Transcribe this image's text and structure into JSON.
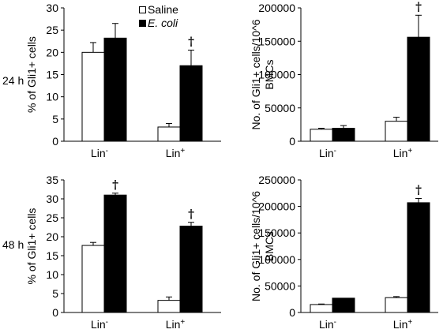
{
  "figure": {
    "row_labels": [
      "24 h",
      "48 h"
    ],
    "legend": [
      {
        "label": "Saline",
        "color": "#ffffff",
        "italic": false
      },
      {
        "label": "E. coli",
        "color": "#000000",
        "italic": true
      }
    ],
    "colors": {
      "saline": "#ffffff",
      "ecoli": "#000000",
      "axis": "#000000"
    }
  },
  "chart_data": [
    {
      "type": "bar",
      "panel": "24h-percent",
      "ylabel": "% of Gli1+ cells",
      "ylim": [
        0,
        30
      ],
      "yticks": [
        "0",
        "5",
        "10",
        "15",
        "20",
        "25",
        "30"
      ],
      "categories": [
        {
          "base": "Lin",
          "sup": "-"
        },
        {
          "base": "Lin",
          "sup": "+"
        }
      ],
      "series": [
        {
          "name": "Saline",
          "values": [
            20,
            3.2
          ],
          "errors": [
            2.2,
            0.8
          ]
        },
        {
          "name": "E. coli",
          "values": [
            23.2,
            17
          ],
          "errors": [
            3.3,
            3.5
          ]
        }
      ],
      "annotations": [
        {
          "series": 1,
          "category": 1,
          "text": "†"
        }
      ]
    },
    {
      "type": "bar",
      "panel": "24h-count",
      "ylabel": [
        "No. of Gli1+ cells/10^6",
        "BMCs"
      ],
      "ylim": [
        0,
        200000
      ],
      "yticks": [
        "0",
        "50000",
        "100000",
        "150000",
        "200000"
      ],
      "categories": [
        {
          "base": "Lin",
          "sup": "-"
        },
        {
          "base": "Lin",
          "sup": "+"
        }
      ],
      "series": [
        {
          "name": "Saline",
          "values": [
            18000,
            30000
          ],
          "errors": [
            1500,
            6000
          ]
        },
        {
          "name": "E. coli",
          "values": [
            19500,
            156000
          ],
          "errors": [
            4000,
            33000
          ]
        }
      ],
      "annotations": [
        {
          "series": 1,
          "category": 1,
          "text": "†"
        }
      ]
    },
    {
      "type": "bar",
      "panel": "48h-percent",
      "ylabel": "% of Gli1+ cells",
      "ylim": [
        0,
        35
      ],
      "yticks": [
        "0",
        "5",
        "10",
        "15",
        "20",
        "25",
        "30",
        "35"
      ],
      "categories": [
        {
          "base": "Lin",
          "sup": "-"
        },
        {
          "base": "Lin",
          "sup": "+"
        }
      ],
      "series": [
        {
          "name": "Saline",
          "values": [
            17.7,
            3.2
          ],
          "errors": [
            0.8,
            0.9
          ]
        },
        {
          "name": "E. coli",
          "values": [
            31,
            22.8
          ],
          "errors": [
            0.5,
            1
          ]
        }
      ],
      "annotations": [
        {
          "series": 1,
          "category": 0,
          "text": "†"
        },
        {
          "series": 1,
          "category": 1,
          "text": "†"
        }
      ]
    },
    {
      "type": "bar",
      "panel": "48h-count",
      "ylabel": [
        "No. of Gli1+ cells/10^6",
        "BMCs"
      ],
      "ylim": [
        0,
        250000
      ],
      "yticks": [
        "0",
        "50000",
        "100000",
        "150000",
        "200000",
        "250000"
      ],
      "categories": [
        {
          "base": "Lin",
          "sup": "-"
        },
        {
          "base": "Lin",
          "sup": "+"
        }
      ],
      "series": [
        {
          "name": "Saline",
          "values": [
            15000,
            28000
          ],
          "errors": [
            1000,
            2000
          ]
        },
        {
          "name": "E. coli",
          "values": [
            27000,
            207000
          ],
          "errors": [
            0,
            8000
          ]
        }
      ],
      "annotations": [
        {
          "series": 1,
          "category": 1,
          "text": "†"
        }
      ]
    }
  ]
}
